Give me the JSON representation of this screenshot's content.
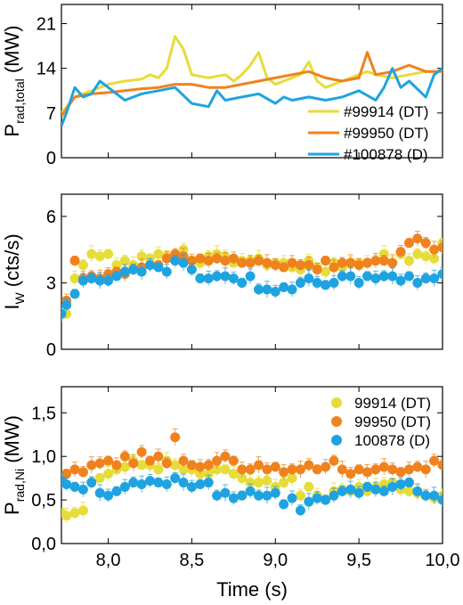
{
  "chart_data": [
    {
      "type": "line",
      "ylabel_main": "P",
      "ylabel_sub": "rad,total",
      "ylabel_unit": " (MW)",
      "xlim": [
        7.72,
        10.0
      ],
      "ylim": [
        0,
        24
      ],
      "yticks": [
        0,
        7,
        14,
        21
      ],
      "ytick_labels": [
        "0",
        "7",
        "14",
        "21"
      ],
      "legend_position": "bottom-right",
      "series": [
        {
          "name": "#99914 (DT)",
          "color": "#e6dc3a",
          "x": [
            7.72,
            7.8,
            7.9,
            8.0,
            8.1,
            8.2,
            8.25,
            8.3,
            8.35,
            8.4,
            8.45,
            8.5,
            8.6,
            8.7,
            8.75,
            8.8,
            8.85,
            8.9,
            8.95,
            9.0,
            9.05,
            9.1,
            9.15,
            9.2,
            9.25,
            9.3,
            9.4,
            9.5,
            9.55,
            9.6,
            9.7,
            9.8,
            9.9,
            10.0
          ],
          "y": [
            7.0,
            9.5,
            10.5,
            11.5,
            12.0,
            12.3,
            13.0,
            12.5,
            14.0,
            19.0,
            17.0,
            13.0,
            12.5,
            13.0,
            12.0,
            13.0,
            14.5,
            16.5,
            12.5,
            11.5,
            12.0,
            12.5,
            13.0,
            15.0,
            12.0,
            11.0,
            12.0,
            13.0,
            13.5,
            13.0,
            12.5,
            13.0,
            13.5,
            13.5
          ]
        },
        {
          "name": "#99950 (DT)",
          "color": "#f0821e",
          "x": [
            7.72,
            7.8,
            7.9,
            8.0,
            8.1,
            8.2,
            8.3,
            8.4,
            8.5,
            8.6,
            8.7,
            8.8,
            8.9,
            9.0,
            9.1,
            9.2,
            9.3,
            9.4,
            9.5,
            9.55,
            9.6,
            9.7,
            9.8,
            9.9,
            10.0
          ],
          "y": [
            6.5,
            9.5,
            10.0,
            10.2,
            10.5,
            10.8,
            11.0,
            11.5,
            11.5,
            11.0,
            11.0,
            11.5,
            12.0,
            12.5,
            13.0,
            13.5,
            12.5,
            12.0,
            12.5,
            16.5,
            13.0,
            13.5,
            14.5,
            13.5,
            13.5
          ]
        },
        {
          "name": "#100878 (D)",
          "color": "#1fa3e0",
          "x": [
            7.72,
            7.75,
            7.8,
            7.85,
            7.9,
            7.95,
            8.0,
            8.1,
            8.2,
            8.3,
            8.4,
            8.5,
            8.6,
            8.65,
            8.7,
            8.8,
            8.9,
            9.0,
            9.05,
            9.1,
            9.2,
            9.3,
            9.4,
            9.5,
            9.6,
            9.65,
            9.7,
            9.75,
            9.8,
            9.9,
            9.95,
            10.0
          ],
          "y": [
            5.0,
            7.0,
            11.0,
            9.5,
            10.0,
            12.0,
            11.0,
            9.0,
            10.0,
            10.5,
            11.0,
            8.5,
            8.0,
            10.5,
            9.0,
            9.5,
            10.0,
            8.5,
            9.5,
            9.0,
            9.5,
            9.0,
            9.5,
            10.5,
            9.0,
            11.0,
            14.0,
            11.0,
            12.0,
            9.5,
            13.0,
            14.0
          ]
        }
      ]
    },
    {
      "type": "scatter",
      "ylabel_main": "I",
      "ylabel_sub": "W",
      "ylabel_unit": " (cts/s)",
      "xlim": [
        7.72,
        10.0
      ],
      "ylim": [
        0,
        7
      ],
      "yticks": [
        0,
        3,
        6
      ],
      "ytick_labels": [
        "0",
        "3",
        "6"
      ],
      "series": [
        {
          "name": "99914 (DT)",
          "color": "#e6dc3a",
          "x": [
            7.75,
            7.8,
            7.85,
            7.9,
            7.95,
            8.0,
            8.05,
            8.1,
            8.15,
            8.2,
            8.25,
            8.3,
            8.35,
            8.4,
            8.45,
            8.5,
            8.55,
            8.6,
            8.65,
            8.7,
            8.75,
            8.8,
            8.85,
            8.9,
            8.95,
            9.0,
            9.05,
            9.1,
            9.15,
            9.2,
            9.25,
            9.3,
            9.35,
            9.4,
            9.45,
            9.5,
            9.55,
            9.6,
            9.65,
            9.7,
            9.75,
            9.8,
            9.85,
            9.9,
            9.95,
            10.0
          ],
          "y": [
            1.6,
            3.2,
            3.8,
            4.3,
            4.2,
            4.3,
            3.8,
            4.0,
            3.8,
            4.2,
            4.1,
            4.3,
            4.2,
            4.0,
            4.5,
            4.0,
            3.9,
            4.2,
            4.3,
            4.2,
            3.9,
            4.0,
            4.0,
            4.1,
            3.8,
            3.9,
            3.9,
            3.7,
            3.6,
            4.0,
            3.7,
            3.5,
            3.9,
            3.7,
            3.9,
            3.9,
            3.9,
            4.0,
            4.3,
            3.9,
            4.3,
            4.0,
            4.3,
            4.2,
            4.1,
            4.8
          ]
        },
        {
          "name": "99950 (DT)",
          "color": "#f0821e",
          "x": [
            7.75,
            7.8,
            7.85,
            7.9,
            7.95,
            8.0,
            8.05,
            8.1,
            8.15,
            8.2,
            8.25,
            8.3,
            8.35,
            8.4,
            8.45,
            8.5,
            8.55,
            8.6,
            8.65,
            8.7,
            8.75,
            8.8,
            8.85,
            8.9,
            8.95,
            9.0,
            9.05,
            9.1,
            9.15,
            9.2,
            9.25,
            9.3,
            9.35,
            9.4,
            9.45,
            9.5,
            9.55,
            9.6,
            9.65,
            9.7,
            9.75,
            9.8,
            9.85,
            9.9,
            9.95,
            10.0
          ],
          "y": [
            2.2,
            4.0,
            3.2,
            3.3,
            3.2,
            3.4,
            3.5,
            3.4,
            3.6,
            3.7,
            3.8,
            3.8,
            4.1,
            4.3,
            4.2,
            4.0,
            4.1,
            4.0,
            4.1,
            4.0,
            4.1,
            3.9,
            3.9,
            4.0,
            3.9,
            3.8,
            3.7,
            3.9,
            3.8,
            3.8,
            3.6,
            4.0,
            3.7,
            3.9,
            3.9,
            3.8,
            3.9,
            4.0,
            4.0,
            3.9,
            4.4,
            4.8,
            5.0,
            4.8,
            4.5,
            4.6
          ]
        },
        {
          "name": "100878 (D)",
          "color": "#1fa3e0",
          "x": [
            7.72,
            7.75,
            7.8,
            7.85,
            7.9,
            7.95,
            8.0,
            8.05,
            8.1,
            8.15,
            8.2,
            8.25,
            8.3,
            8.35,
            8.4,
            8.45,
            8.5,
            8.55,
            8.6,
            8.65,
            8.7,
            8.75,
            8.8,
            8.85,
            8.9,
            8.95,
            9.0,
            9.05,
            9.1,
            9.15,
            9.2,
            9.25,
            9.3,
            9.35,
            9.4,
            9.45,
            9.5,
            9.55,
            9.6,
            9.65,
            9.7,
            9.75,
            9.8,
            9.85,
            9.9,
            9.95,
            10.0
          ],
          "y": [
            1.6,
            2.0,
            2.5,
            3.1,
            3.2,
            3.1,
            3.1,
            3.3,
            3.5,
            3.6,
            3.5,
            3.8,
            3.7,
            3.5,
            4.0,
            3.9,
            3.6,
            3.2,
            3.2,
            3.3,
            3.3,
            3.2,
            3.0,
            3.3,
            2.7,
            2.7,
            2.6,
            2.8,
            2.7,
            3.0,
            3.2,
            3.0,
            2.9,
            3.0,
            3.3,
            3.3,
            3.0,
            3.3,
            3.2,
            3.3,
            3.3,
            3.1,
            3.3,
            3.0,
            3.2,
            3.2,
            3.4
          ]
        }
      ]
    },
    {
      "type": "scatter",
      "ylabel_main": "P",
      "ylabel_sub": "rad,Ni",
      "ylabel_unit": " (MW)",
      "xlabel": "Time (s)",
      "xlim": [
        7.72,
        10.0
      ],
      "ylim": [
        0,
        1.8
      ],
      "xticks": [
        8.0,
        8.5,
        9.0,
        9.5,
        10.0
      ],
      "xtick_labels": [
        "8,0",
        "8,5",
        "9,0",
        "9,5",
        "10,0"
      ],
      "yticks": [
        0,
        0.5,
        1.0,
        1.5
      ],
      "ytick_labels": [
        "0,0",
        "0,5",
        "1,0",
        "1,5"
      ],
      "legend_position": "top-right",
      "series": [
        {
          "name": "99914 (DT)",
          "color": "#e6dc3a",
          "x": [
            7.72,
            7.75,
            7.8,
            7.85,
            7.9,
            7.95,
            8.0,
            8.05,
            8.1,
            8.15,
            8.2,
            8.25,
            8.3,
            8.35,
            8.4,
            8.45,
            8.5,
            8.55,
            8.6,
            8.65,
            8.7,
            8.75,
            8.8,
            8.85,
            8.9,
            8.95,
            9.0,
            9.05,
            9.1,
            9.15,
            9.2,
            9.25,
            9.3,
            9.35,
            9.4,
            9.45,
            9.5,
            9.55,
            9.6,
            9.65,
            9.7,
            9.75,
            9.8,
            9.85,
            9.9,
            9.95,
            10.0
          ],
          "y": [
            0.35,
            0.32,
            0.35,
            0.38,
            0.7,
            0.75,
            0.8,
            0.85,
            0.88,
            0.95,
            0.9,
            0.9,
            0.85,
            0.95,
            0.9,
            0.85,
            0.85,
            0.8,
            0.8,
            0.85,
            0.85,
            0.8,
            0.75,
            0.7,
            0.7,
            0.72,
            0.65,
            0.7,
            0.75,
            0.55,
            0.65,
            0.55,
            0.5,
            0.6,
            0.62,
            0.6,
            0.65,
            0.6,
            0.65,
            0.68,
            0.7,
            0.62,
            0.6,
            0.58,
            0.55,
            0.52,
            0.55
          ]
        },
        {
          "name": "99950 (DT)",
          "color": "#f0821e",
          "x": [
            7.72,
            7.75,
            7.8,
            7.85,
            7.9,
            7.95,
            8.0,
            8.05,
            8.1,
            8.15,
            8.2,
            8.25,
            8.3,
            8.35,
            8.4,
            8.45,
            8.5,
            8.55,
            8.6,
            8.65,
            8.7,
            8.75,
            8.8,
            8.85,
            8.9,
            8.95,
            9.0,
            9.05,
            9.1,
            9.15,
            9.2,
            9.25,
            9.3,
            9.35,
            9.4,
            9.45,
            9.5,
            9.55,
            9.6,
            9.65,
            9.7,
            9.75,
            9.8,
            9.85,
            9.9,
            9.95,
            10.0
          ],
          "y": [
            0.75,
            0.8,
            0.85,
            0.82,
            0.9,
            0.92,
            0.95,
            0.9,
            1.0,
            0.92,
            1.05,
            0.95,
            1.0,
            0.92,
            1.22,
            0.95,
            0.9,
            0.88,
            0.9,
            0.95,
            1.0,
            0.95,
            0.85,
            0.85,
            0.9,
            0.85,
            0.88,
            0.82,
            0.85,
            0.85,
            0.9,
            0.85,
            0.88,
            0.95,
            0.85,
            0.8,
            0.85,
            0.82,
            0.85,
            0.88,
            0.85,
            0.82,
            0.85,
            0.88,
            0.85,
            0.95,
            0.9
          ]
        },
        {
          "name": "100878 (D)",
          "color": "#1fa3e0",
          "x": [
            7.72,
            7.75,
            7.8,
            7.85,
            7.9,
            7.95,
            8.0,
            8.05,
            8.1,
            8.15,
            8.2,
            8.25,
            8.3,
            8.35,
            8.4,
            8.45,
            8.5,
            8.55,
            8.6,
            8.65,
            8.7,
            8.75,
            8.8,
            8.85,
            8.9,
            8.95,
            9.0,
            9.05,
            9.1,
            9.15,
            9.2,
            9.25,
            9.3,
            9.35,
            9.4,
            9.45,
            9.5,
            9.55,
            9.6,
            9.65,
            9.7,
            9.75,
            9.8,
            9.85,
            9.9,
            9.95,
            10.0
          ],
          "y": [
            0.72,
            0.68,
            0.65,
            0.62,
            0.7,
            0.58,
            0.55,
            0.6,
            0.65,
            0.7,
            0.68,
            0.72,
            0.7,
            0.68,
            0.75,
            0.7,
            0.65,
            0.68,
            0.7,
            0.55,
            0.58,
            0.52,
            0.55,
            0.6,
            0.55,
            0.55,
            0.58,
            0.45,
            0.52,
            0.38,
            0.48,
            0.52,
            0.5,
            0.55,
            0.6,
            0.62,
            0.58,
            0.65,
            0.62,
            0.6,
            0.65,
            0.68,
            0.7,
            0.6,
            0.55,
            0.55,
            0.5
          ]
        }
      ]
    }
  ]
}
